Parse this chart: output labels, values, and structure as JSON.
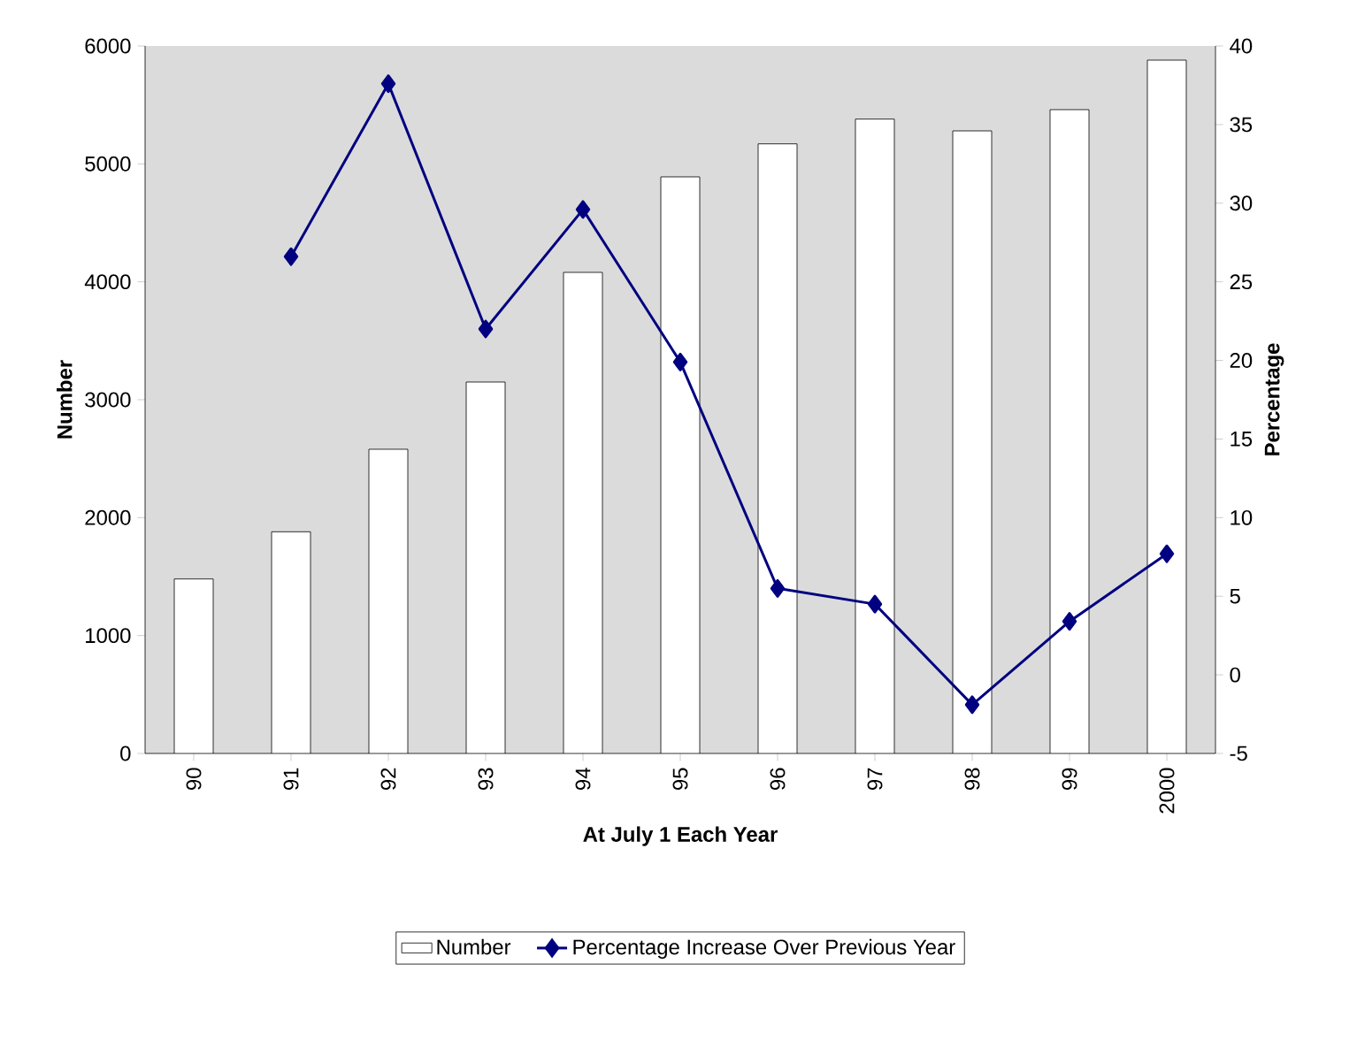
{
  "chart_data": {
    "type": "bar",
    "xlabel": "At July 1 Each Year",
    "ylabel": "Number",
    "y2label": "Percentage",
    "categories": [
      "90",
      "91",
      "92",
      "93",
      "94",
      "95",
      "96",
      "97",
      "98",
      "99",
      "2000"
    ],
    "series": [
      {
        "name": "Number",
        "color": "#ffffff",
        "values": [
          1480,
          1880,
          2580,
          3150,
          4080,
          4890,
          5170,
          5380,
          5280,
          5460,
          5880
        ]
      },
      {
        "name": "Percentage Increase Over Previous Year",
        "type": "line",
        "axis": "y2",
        "color": "#000080",
        "marker": "diamond",
        "values": [
          null,
          26.6,
          37.6,
          22.0,
          29.6,
          19.9,
          5.5,
          4.5,
          -1.9,
          3.4,
          7.7
        ]
      }
    ],
    "ylim": [
      0,
      6000
    ],
    "yticks": [
      0,
      1000,
      2000,
      3000,
      4000,
      5000,
      6000
    ],
    "y2lim": [
      -5,
      40
    ],
    "y2ticks": [
      -5,
      0,
      5,
      10,
      15,
      20,
      25,
      30,
      35,
      40
    ],
    "legend": "bottom"
  }
}
